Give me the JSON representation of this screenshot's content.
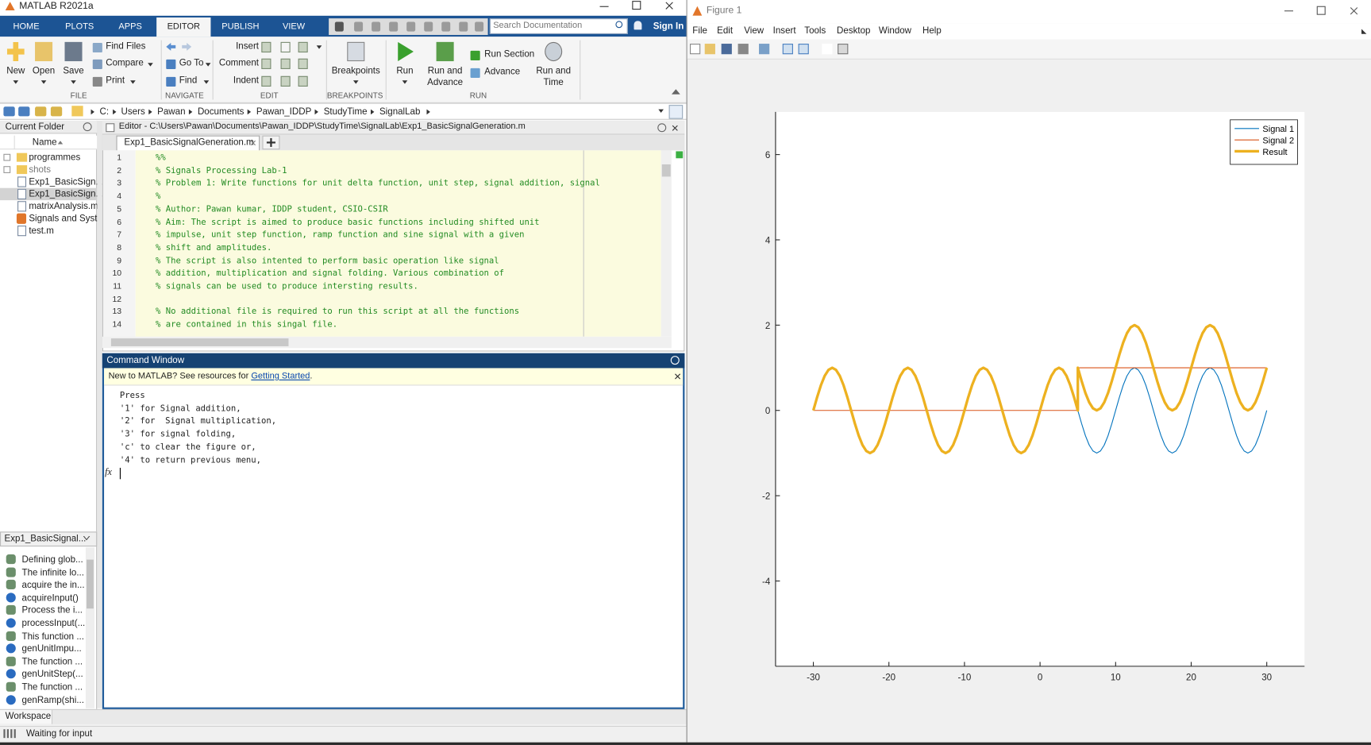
{
  "window": {
    "title": "MATLAB R2021a"
  },
  "tabs": [
    "HOME",
    "PLOTS",
    "APPS",
    "EDITOR",
    "PUBLISH",
    "VIEW"
  ],
  "selected_tab": 3,
  "search_placeholder": "Search Documentation",
  "sign_in": "Sign In",
  "ribbon": {
    "file": {
      "label": "FILE",
      "new": "New",
      "open": "Open",
      "save": "Save",
      "find_files": "Find Files",
      "compare": "Compare",
      "print": "Print"
    },
    "navigate": {
      "label": "NAVIGATE",
      "go_to": "Go To",
      "find": "Find"
    },
    "edit": {
      "label": "EDIT",
      "insert": "Insert",
      "comment": "Comment",
      "indent": "Indent"
    },
    "breakpoints": {
      "label": "BREAKPOINTS",
      "breakpoints": "Breakpoints"
    },
    "run": {
      "label": "RUN",
      "run": "Run",
      "run_and_advance": "Run and Advance",
      "run_section": "Run Section",
      "advance": "Advance",
      "run_and_time": "Run and Time"
    }
  },
  "address": [
    "C:",
    "Users",
    "Pawan",
    "Documents",
    "Pawan_IDDP",
    "StudyTime",
    "SignalLab"
  ],
  "current_folder": {
    "title": "Current Folder",
    "column": "Name",
    "items": [
      {
        "name": "programmes",
        "icon": "folder"
      },
      {
        "name": "shots",
        "icon": "folder"
      },
      {
        "name": "Exp1_BasicSign...",
        "icon": "script"
      },
      {
        "name": "Exp1_BasicSign...",
        "icon": "script",
        "selected": true
      },
      {
        "name": "matrixAnalysis.m",
        "icon": "script"
      },
      {
        "name": "Signals and Syst...",
        "icon": "live"
      },
      {
        "name": "test.m",
        "icon": "script"
      }
    ]
  },
  "editor": {
    "title": "Editor - C:\\Users\\Pawan\\Documents\\Pawan_IDDP\\StudyTime\\SignalLab\\Exp1_BasicSignalGeneration.m",
    "tab": "Exp1_BasicSignalGeneration.m",
    "lines": [
      {
        "number": 1,
        "text": "%%"
      },
      {
        "number": 2,
        "text": "% Signals Processing Lab-1"
      },
      {
        "number": 3,
        "text": "% Problem 1: Write functions for unit delta function, unit step, signal addition, signal"
      },
      {
        "number": 4,
        "text": "%"
      },
      {
        "number": 5,
        "text": "% Author: Pawan kumar, IDDP student, CSIO-CSIR"
      },
      {
        "number": 6,
        "text": "% Aim: The script is aimed to produce basic functions including shifted unit"
      },
      {
        "number": 7,
        "text": "% impulse, unit step function, ramp function and sine signal with a given"
      },
      {
        "number": 8,
        "text": "% shift and amplitudes."
      },
      {
        "number": 9,
        "text": "% The script is also intented to perform basic operation like signal"
      },
      {
        "number": 10,
        "text": "% addition, multiplication and signal folding. Various combination of"
      },
      {
        "number": 11,
        "text": "% signals can be used to produce intersting results."
      },
      {
        "number": 12
      },
      {
        "number": 13,
        "text": "% No additional file is required to run this script at all the functions"
      },
      {
        "number": 14,
        "text": "% are contained in this singal file."
      }
    ]
  },
  "command_window": {
    "title": "Command Window",
    "banner": "New to MATLAB? See resources for ",
    "banner_link": "Getting Started",
    "banner_end": ".",
    "lines": [
      "Press",
      "'1' for Signal addition,",
      "'2' for  Signal multiplication,",
      "'3' for signal folding,",
      "'c' to clear the figure or,",
      "'4' to return previous menu,"
    ],
    "prompt": "fx"
  },
  "function_browser": {
    "title": "Exp1_BasicSignal...",
    "items": [
      {
        "text": "Defining glob...",
        "icon": "comment"
      },
      {
        "text": "The infinite lo...",
        "icon": "comment"
      },
      {
        "text": "acquire the in...",
        "icon": "comment"
      },
      {
        "text": "acquireInput()",
        "icon": "function"
      },
      {
        "text": "Process the i...",
        "icon": "comment"
      },
      {
        "text": "processInput(...",
        "icon": "function"
      },
      {
        "text": "This function ...",
        "icon": "comment"
      },
      {
        "text": "genUnitImpu...",
        "icon": "function"
      },
      {
        "text": "The function ...",
        "icon": "comment"
      },
      {
        "text": "genUnitStep(...",
        "icon": "function"
      },
      {
        "text": "The function ...",
        "icon": "comment"
      },
      {
        "text": "genRamp(shi...",
        "icon": "function"
      }
    ]
  },
  "workspace_tab": "Workspace",
  "status": "Waiting for input",
  "figure": {
    "title": "Figure 1",
    "menus": [
      "File",
      "Edit",
      "View",
      "Insert",
      "Tools",
      "Desktop",
      "Window",
      "Help"
    ]
  },
  "chart_data": {
    "type": "line",
    "xlim": [
      -35,
      35
    ],
    "ylim": [
      -6,
      7
    ],
    "xticks": [
      -30,
      -20,
      -10,
      0,
      10,
      20,
      30
    ],
    "yticks": [
      -4,
      -2,
      0,
      2,
      4,
      6
    ],
    "grid": false,
    "legend": "northeast",
    "series": [
      {
        "name": "Signal 1",
        "color": "#0072bd",
        "width": 1,
        "x": [
          5,
          5.5,
          6,
          6.5,
          7,
          7.5,
          8,
          8.5,
          9,
          9.5,
          10,
          10.5,
          11,
          11.5,
          12,
          12.5,
          13,
          13.5,
          14,
          14.5,
          15,
          15.5,
          16,
          16.5,
          17,
          17.5,
          18,
          18.5,
          19,
          19.5,
          20,
          20.5,
          21,
          21.5,
          22,
          22.5,
          23,
          23.5,
          24,
          24.5,
          25,
          25.5,
          26,
          26.5,
          27,
          27.5,
          28,
          28.5,
          29,
          29.5,
          30
        ],
        "values": [
          0,
          -0.31,
          -0.59,
          -0.81,
          -0.95,
          -1,
          -0.95,
          -0.81,
          -0.59,
          -0.31,
          0,
          0.31,
          0.59,
          0.81,
          0.95,
          1,
          0.95,
          0.81,
          0.59,
          0.31,
          0,
          -0.31,
          -0.59,
          -0.81,
          -0.95,
          -1,
          -0.95,
          -0.81,
          -0.59,
          -0.31,
          0,
          0.31,
          0.59,
          0.81,
          0.95,
          1,
          0.95,
          0.81,
          0.59,
          0.31,
          0,
          -0.31,
          -0.59,
          -0.81,
          -0.95,
          -1,
          -0.95,
          -0.81,
          -0.59,
          -0.31,
          0
        ]
      },
      {
        "name": "Signal 2",
        "color": "#d95319",
        "width": 1,
        "x": [
          -30,
          5,
          5,
          30
        ],
        "values": [
          0,
          0,
          1,
          1
        ]
      },
      {
        "name": "Result",
        "color": "#edb120",
        "width": 3,
        "x": [
          -30,
          -29.5,
          -29,
          -28.5,
          -28,
          -27.5,
          -27,
          -26.5,
          -26,
          -25.5,
          -25,
          -24.5,
          -24,
          -23.5,
          -23,
          -22.5,
          -22,
          -21.5,
          -21,
          -20.5,
          -20,
          -19.5,
          -19,
          -18.5,
          -18,
          -17.5,
          -17,
          -16.5,
          -16,
          -15.5,
          -15,
          -14.5,
          -14,
          -13.5,
          -13,
          -12.5,
          -12,
          -11.5,
          -11,
          -10.5,
          -10,
          -9.5,
          -9,
          -8.5,
          -8,
          -7.5,
          -7,
          -6.5,
          -6,
          -5.5,
          -5,
          -4.5,
          -4,
          -3.5,
          -3,
          -2.5,
          -2,
          -1.5,
          -1,
          -0.5,
          0,
          0.5,
          1,
          1.5,
          2,
          2.5,
          3,
          3.5,
          4,
          4.5,
          5,
          5,
          5.5,
          6,
          6.5,
          7,
          7.5,
          8,
          8.5,
          9,
          9.5,
          10,
          10.5,
          11,
          11.5,
          12,
          12.5,
          13,
          13.5,
          14,
          14.5,
          15,
          15.5,
          16,
          16.5,
          17,
          17.5,
          18,
          18.5,
          19,
          19.5,
          20,
          20.5,
          21,
          21.5,
          22,
          22.5,
          23,
          23.5,
          24,
          24.5,
          25,
          25.5,
          26,
          26.5,
          27,
          27.5,
          28,
          28.5,
          29,
          29.5,
          30
        ],
        "values": [
          0,
          0.31,
          0.59,
          0.81,
          0.95,
          1,
          0.95,
          0.81,
          0.59,
          0.31,
          0,
          -0.31,
          -0.59,
          -0.81,
          -0.95,
          -1,
          -0.95,
          -0.81,
          -0.59,
          -0.31,
          0,
          0.31,
          0.59,
          0.81,
          0.95,
          1,
          0.95,
          0.81,
          0.59,
          0.31,
          0,
          -0.31,
          -0.59,
          -0.81,
          -0.95,
          -1,
          -0.95,
          -0.81,
          -0.59,
          -0.31,
          0,
          0.31,
          0.59,
          0.81,
          0.95,
          1,
          0.95,
          0.81,
          0.59,
          0.31,
          0,
          -0.31,
          -0.59,
          -0.81,
          -0.95,
          -1,
          -0.95,
          -0.81,
          -0.59,
          -0.31,
          0,
          0.31,
          0.59,
          0.81,
          0.95,
          1,
          0.95,
          0.81,
          0.59,
          0.31,
          0,
          1,
          0.69,
          0.41,
          0.19,
          0.05,
          0,
          0.05,
          0.19,
          0.41,
          0.69,
          1,
          1.31,
          1.59,
          1.81,
          1.95,
          2,
          1.95,
          1.81,
          1.59,
          1.31,
          1,
          0.69,
          0.41,
          0.19,
          0.05,
          0,
          0.05,
          0.19,
          0.41,
          0.69,
          1,
          1.31,
          1.59,
          1.81,
          1.95,
          2,
          1.95,
          1.81,
          1.59,
          1.31,
          1,
          0.69,
          0.41,
          0.19,
          0.05,
          0,
          0.05,
          0.19,
          0.41,
          0.69,
          1
        ]
      }
    ]
  }
}
